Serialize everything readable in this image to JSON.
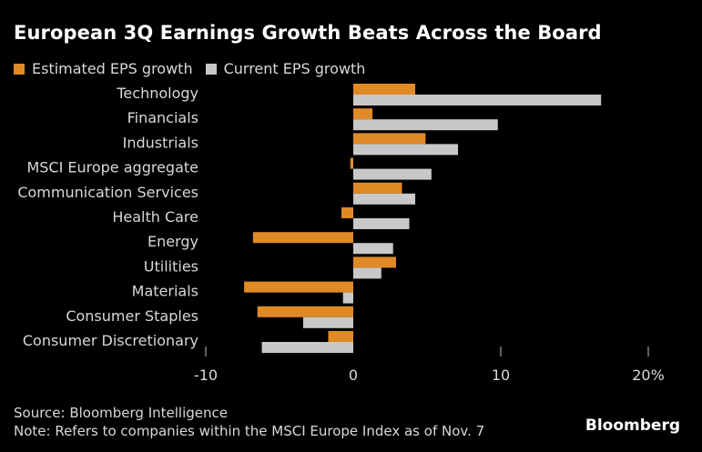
{
  "title": "European 3Q Earnings Growth Beats Across the Board",
  "source": "Source: Bloomberg Intelligence",
  "note": "Note: Refers to companies within the MSCI Europe Index as of Nov. 7",
  "brand": "Bloomberg",
  "colors": {
    "estimated": "#e08a26",
    "current": "#c8c8c8",
    "background": "#000000",
    "text": "#d8d8d8"
  },
  "chart_data": {
    "type": "bar",
    "orientation": "horizontal",
    "title": "European 3Q Earnings Growth Beats Across the Board",
    "categories": [
      "Technology",
      "Financials",
      "Industrials",
      "MSCI Europe aggregate",
      "Communication Services",
      "Health Care",
      "Energy",
      "Utilities",
      "Materials",
      "Consumer Staples",
      "Consumer Discretionary"
    ],
    "series": [
      {
        "name": "Estimated EPS growth",
        "color": "#e08a26",
        "values": [
          4.2,
          1.3,
          4.9,
          -0.2,
          3.3,
          -0.8,
          -6.8,
          2.9,
          -7.4,
          -6.5,
          -1.7
        ]
      },
      {
        "name": "Current EPS growth",
        "color": "#c8c8c8",
        "values": [
          16.8,
          9.8,
          7.1,
          5.3,
          4.2,
          3.8,
          2.7,
          1.9,
          -0.7,
          -3.4,
          -6.2
        ]
      }
    ],
    "xlim": [
      -10,
      20
    ],
    "ticks": [
      -10,
      0,
      10,
      20
    ],
    "tick_labels": [
      "-10",
      "0",
      "10",
      "20%"
    ],
    "legend": "top-left",
    "grid": false
  }
}
